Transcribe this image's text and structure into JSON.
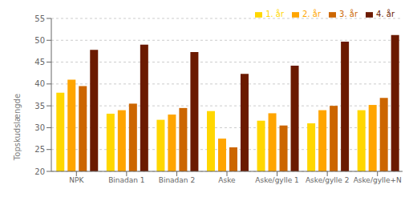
{
  "chart_data": {
    "type": "bar",
    "categories": [
      "NPK",
      "Binadan 1",
      "Binadan 2",
      "Aske",
      "Aske/gylle 1",
      "Aske/gylle 2",
      "Aske/gylle+N"
    ],
    "series": [
      {
        "name": "1. år",
        "color": "#FFD700",
        "values": [
          38.0,
          33.2,
          31.8,
          33.8,
          31.6,
          31.0,
          34.0
        ]
      },
      {
        "name": "2. år",
        "color": "#FFA500",
        "values": [
          41.0,
          34.0,
          33.0,
          27.5,
          33.3,
          34.0,
          35.2
        ]
      },
      {
        "name": "3. år",
        "color": "#CC6600",
        "values": [
          39.5,
          35.5,
          34.5,
          25.5,
          30.5,
          35.0,
          36.8
        ]
      },
      {
        "name": "4. år",
        "color": "#6B1A00",
        "values": [
          47.8,
          49.0,
          47.3,
          42.3,
          44.2,
          49.7,
          51.2
        ]
      }
    ],
    "ylabel": "Topskudslængde",
    "ylim": [
      20,
      55
    ],
    "yticks": [
      20,
      25,
      30,
      35,
      40,
      45,
      50,
      55
    ],
    "grid": true,
    "legend": "upper right"
  }
}
